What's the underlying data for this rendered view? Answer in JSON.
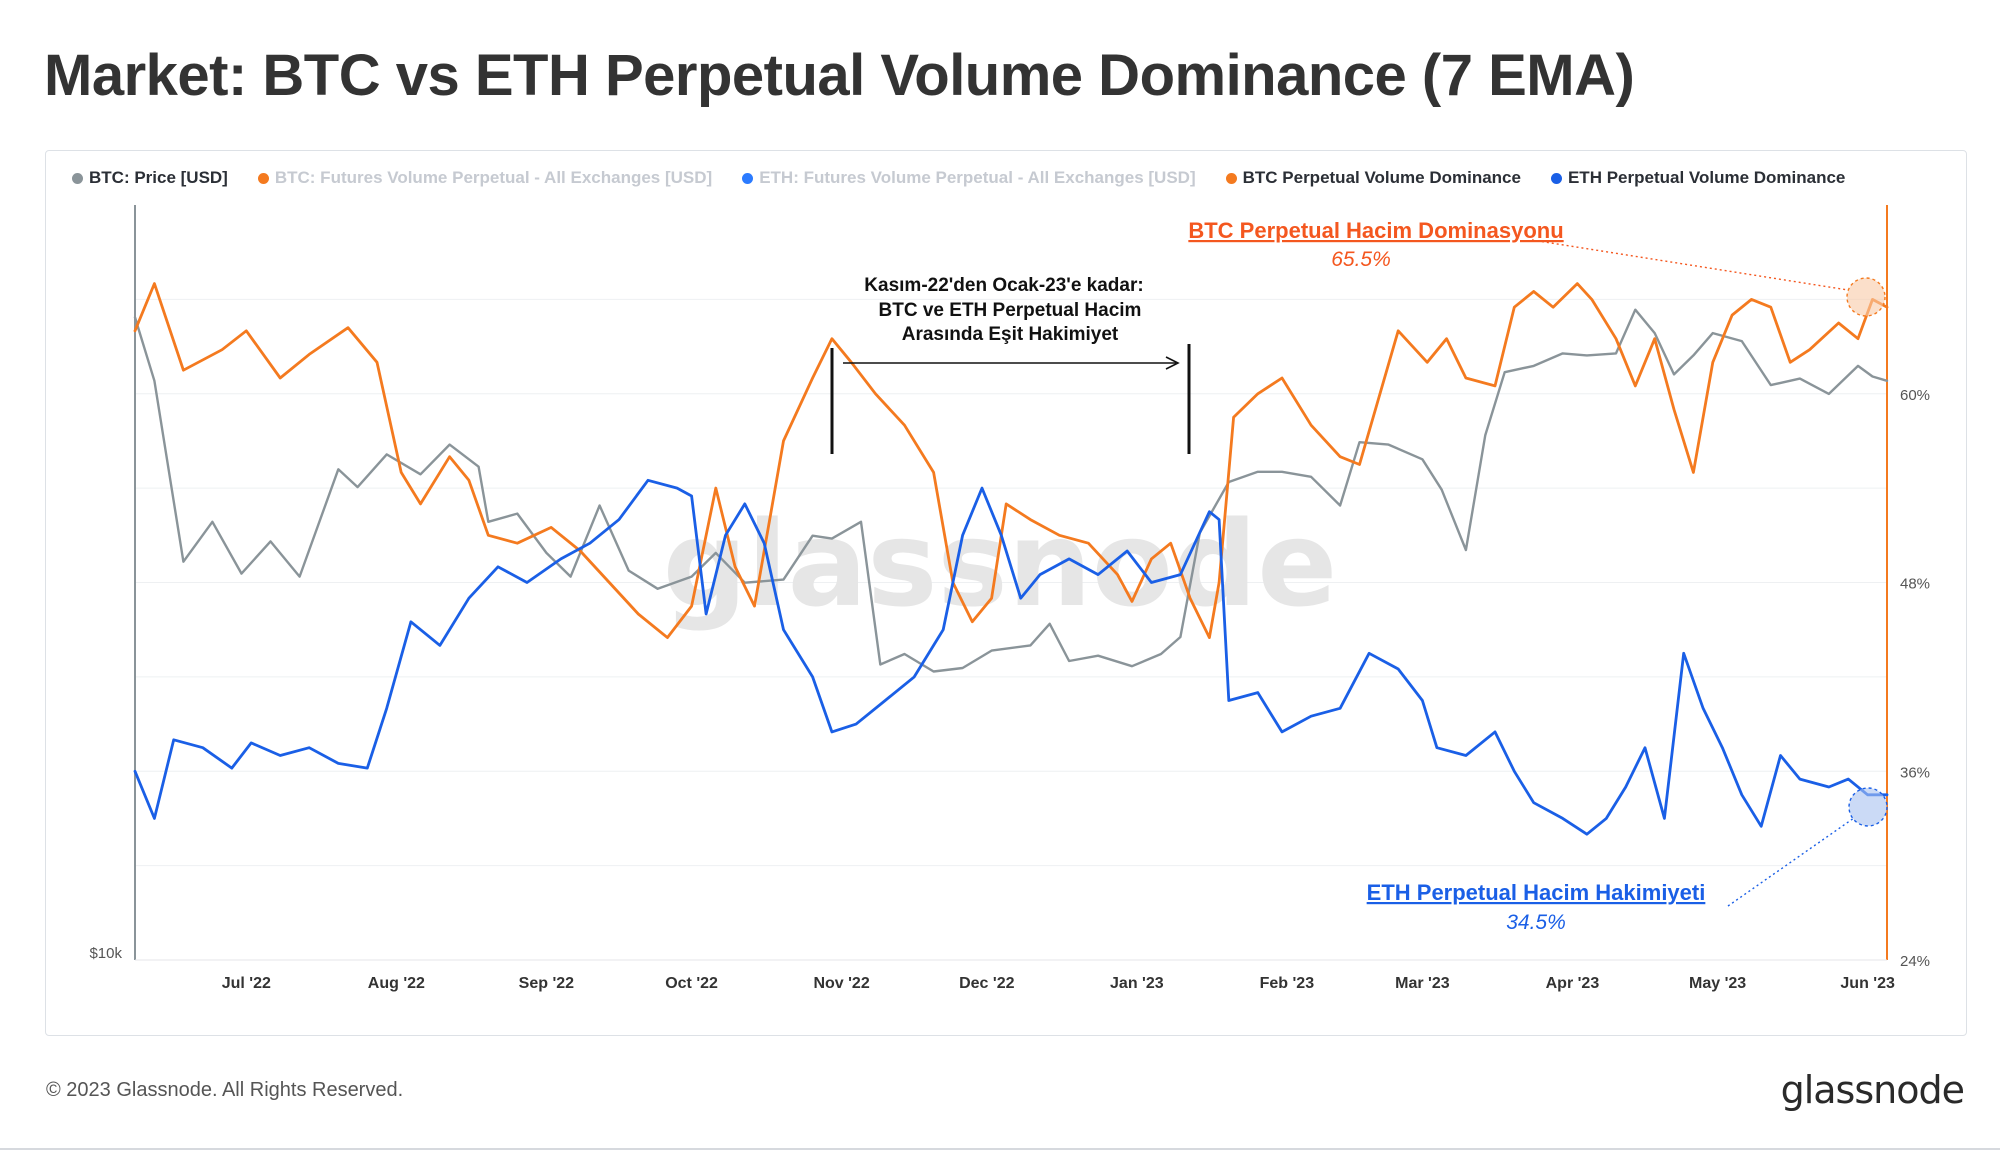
{
  "title": "Market: BTC vs ETH Perpetual Volume Dominance (7 EMA)",
  "legend": [
    {
      "label": "BTC: Price [USD]",
      "color": "#8a9499",
      "dim": false
    },
    {
      "label": "BTC: Futures Volume Perpetual - All Exchanges [USD]",
      "color": "#f47a1f",
      "dim": true
    },
    {
      "label": "ETH: Futures Volume Perpetual - All Exchanges [USD]",
      "color": "#2b7bff",
      "dim": true
    },
    {
      "label": "BTC Perpetual Volume Dominance",
      "color": "#f47a1f",
      "dim": false
    },
    {
      "label": "ETH Perpetual Volume Dominance",
      "color": "#1a5fe6",
      "dim": false
    }
  ],
  "watermark": "glassnode",
  "footer": {
    "copyright": "© 2023 Glassnode. All Rights Reserved.",
    "logo": "glassnode"
  },
  "chart_data": {
    "type": "line",
    "title": "Market: BTC vs ETH Perpetual Volume Dominance (7 EMA)",
    "x_tick_labels": [
      "Jul '22",
      "Aug '22",
      "Sep '22",
      "Oct '22",
      "Nov '22",
      "Dec '22",
      "Jan '23",
      "Feb '23",
      "Mar '23",
      "Apr '23",
      "May '23",
      "Jun '23"
    ],
    "y_right_ticks": [
      "60%",
      "48%",
      "36%",
      "24%"
    ],
    "y_right_values": [
      60,
      48,
      36,
      24
    ],
    "y_right_range": [
      24,
      72
    ],
    "y_left_tick": "$10k",
    "x_range": [
      "2022-06-08",
      "2023-06-05"
    ],
    "grid": true,
    "legend_position": "top",
    "series": [
      {
        "name": "BTC Perpetual Volume Dominance",
        "color": "#f47a1f",
        "axis": "right-percent",
        "points": [
          [
            "2022-06-08",
            64.0
          ],
          [
            "2022-06-12",
            67.0
          ],
          [
            "2022-06-18",
            61.5
          ],
          [
            "2022-06-26",
            62.8
          ],
          [
            "2022-07-01",
            64.0
          ],
          [
            "2022-07-08",
            61.0
          ],
          [
            "2022-07-14",
            62.5
          ],
          [
            "2022-07-22",
            64.2
          ],
          [
            "2022-07-28",
            62.0
          ],
          [
            "2022-08-02",
            55.0
          ],
          [
            "2022-08-06",
            53.0
          ],
          [
            "2022-08-12",
            56.0
          ],
          [
            "2022-08-16",
            54.5
          ],
          [
            "2022-08-20",
            51.0
          ],
          [
            "2022-08-26",
            50.5
          ],
          [
            "2022-09-02",
            51.5
          ],
          [
            "2022-09-08",
            50.0
          ],
          [
            "2022-09-14",
            48.0
          ],
          [
            "2022-09-20",
            46.0
          ],
          [
            "2022-09-26",
            44.5
          ],
          [
            "2022-10-01",
            46.5
          ],
          [
            "2022-10-06",
            54.0
          ],
          [
            "2022-10-10",
            49.0
          ],
          [
            "2022-10-14",
            46.5
          ],
          [
            "2022-10-20",
            57.0
          ],
          [
            "2022-10-26",
            61.0
          ],
          [
            "2022-10-30",
            63.5
          ],
          [
            "2022-11-03",
            62.0
          ],
          [
            "2022-11-08",
            60.0
          ],
          [
            "2022-11-14",
            58.0
          ],
          [
            "2022-11-20",
            55.0
          ],
          [
            "2022-11-24",
            48.0
          ],
          [
            "2022-11-28",
            45.5
          ],
          [
            "2022-12-02",
            47.0
          ],
          [
            "2022-12-05",
            53.0
          ],
          [
            "2022-12-10",
            52.0
          ],
          [
            "2022-12-16",
            51.0
          ],
          [
            "2022-12-22",
            50.5
          ],
          [
            "2022-12-28",
            48.5
          ],
          [
            "2022-12-31",
            46.8
          ],
          [
            "2023-01-04",
            49.5
          ],
          [
            "2023-01-08",
            50.5
          ],
          [
            "2023-01-12",
            47.0
          ],
          [
            "2023-01-16",
            44.5
          ],
          [
            "2023-01-18",
            48.0
          ],
          [
            "2023-01-21",
            58.5
          ],
          [
            "2023-01-26",
            60.0
          ],
          [
            "2023-01-31",
            61.0
          ],
          [
            "2023-02-06",
            58.0
          ],
          [
            "2023-02-12",
            56.0
          ],
          [
            "2023-02-16",
            55.5
          ],
          [
            "2023-02-24",
            64.0
          ],
          [
            "2023-03-02",
            62.0
          ],
          [
            "2023-03-06",
            63.5
          ],
          [
            "2023-03-10",
            61.0
          ],
          [
            "2023-03-16",
            60.5
          ],
          [
            "2023-03-20",
            65.5
          ],
          [
            "2023-03-24",
            66.5
          ],
          [
            "2023-03-28",
            65.5
          ],
          [
            "2023-04-02",
            67.0
          ],
          [
            "2023-04-05",
            66.0
          ],
          [
            "2023-04-10",
            63.5
          ],
          [
            "2023-04-14",
            60.5
          ],
          [
            "2023-04-18",
            63.5
          ],
          [
            "2023-04-22",
            59.0
          ],
          [
            "2023-04-26",
            55.0
          ],
          [
            "2023-04-30",
            62.0
          ],
          [
            "2023-05-04",
            65.0
          ],
          [
            "2023-05-08",
            66.0
          ],
          [
            "2023-05-12",
            65.5
          ],
          [
            "2023-05-16",
            62.0
          ],
          [
            "2023-05-20",
            62.8
          ],
          [
            "2023-05-26",
            64.5
          ],
          [
            "2023-05-30",
            63.5
          ],
          [
            "2023-06-02",
            66.0
          ],
          [
            "2023-06-05",
            65.5
          ]
        ]
      },
      {
        "name": "ETH Perpetual Volume Dominance",
        "color": "#1a5fe6",
        "axis": "right-percent",
        "points": [
          [
            "2022-06-08",
            36.0
          ],
          [
            "2022-06-12",
            33.0
          ],
          [
            "2022-06-16",
            38.0
          ],
          [
            "2022-06-22",
            37.5
          ],
          [
            "2022-06-28",
            36.2
          ],
          [
            "2022-07-02",
            37.8
          ],
          [
            "2022-07-08",
            37.0
          ],
          [
            "2022-07-14",
            37.5
          ],
          [
            "2022-07-20",
            36.5
          ],
          [
            "2022-07-26",
            36.2
          ],
          [
            "2022-07-30",
            40.0
          ],
          [
            "2022-08-04",
            45.5
          ],
          [
            "2022-08-10",
            44.0
          ],
          [
            "2022-08-16",
            47.0
          ],
          [
            "2022-08-22",
            49.0
          ],
          [
            "2022-08-28",
            48.0
          ],
          [
            "2022-09-04",
            49.5
          ],
          [
            "2022-09-10",
            50.5
          ],
          [
            "2022-09-16",
            52.0
          ],
          [
            "2022-09-22",
            54.5
          ],
          [
            "2022-09-28",
            54.0
          ],
          [
            "2022-10-01",
            53.5
          ],
          [
            "2022-10-04",
            46.0
          ],
          [
            "2022-10-08",
            51.0
          ],
          [
            "2022-10-12",
            53.0
          ],
          [
            "2022-10-16",
            50.5
          ],
          [
            "2022-10-20",
            45.0
          ],
          [
            "2022-10-26",
            42.0
          ],
          [
            "2022-10-30",
            38.5
          ],
          [
            "2022-11-04",
            39.0
          ],
          [
            "2022-11-10",
            40.5
          ],
          [
            "2022-11-16",
            42.0
          ],
          [
            "2022-11-22",
            45.0
          ],
          [
            "2022-11-26",
            51.0
          ],
          [
            "2022-11-30",
            54.0
          ],
          [
            "2022-12-04",
            51.0
          ],
          [
            "2022-12-08",
            47.0
          ],
          [
            "2022-12-12",
            48.5
          ],
          [
            "2022-12-18",
            49.5
          ],
          [
            "2022-12-24",
            48.5
          ],
          [
            "2022-12-30",
            50.0
          ],
          [
            "2023-01-04",
            48.0
          ],
          [
            "2023-01-10",
            48.5
          ],
          [
            "2023-01-16",
            52.5
          ],
          [
            "2023-01-18",
            52.0
          ],
          [
            "2023-01-20",
            40.5
          ],
          [
            "2023-01-26",
            41.0
          ],
          [
            "2023-01-31",
            38.5
          ],
          [
            "2023-02-06",
            39.5
          ],
          [
            "2023-02-12",
            40.0
          ],
          [
            "2023-02-18",
            43.5
          ],
          [
            "2023-02-24",
            42.5
          ],
          [
            "2023-03-01",
            40.5
          ],
          [
            "2023-03-04",
            37.5
          ],
          [
            "2023-03-10",
            37.0
          ],
          [
            "2023-03-16",
            38.5
          ],
          [
            "2023-03-20",
            36.0
          ],
          [
            "2023-03-24",
            34.0
          ],
          [
            "2023-03-30",
            33.0
          ],
          [
            "2023-04-04",
            32.0
          ],
          [
            "2023-04-08",
            33.0
          ],
          [
            "2023-04-12",
            35.0
          ],
          [
            "2023-04-16",
            37.5
          ],
          [
            "2023-04-20",
            33.0
          ],
          [
            "2023-04-24",
            43.5
          ],
          [
            "2023-04-28",
            40.0
          ],
          [
            "2023-05-02",
            37.5
          ],
          [
            "2023-05-06",
            34.5
          ],
          [
            "2023-05-10",
            32.5
          ],
          [
            "2023-05-14",
            37.0
          ],
          [
            "2023-05-18",
            35.5
          ],
          [
            "2023-05-24",
            35.0
          ],
          [
            "2023-05-28",
            35.5
          ],
          [
            "2023-06-01",
            34.5
          ],
          [
            "2023-06-05",
            34.5
          ]
        ]
      },
      {
        "name": "BTC: Price [USD]",
        "color": "#8a9499",
        "axis": "left-log",
        "points": [
          [
            "2022-06-08",
            30100
          ],
          [
            "2022-06-12",
            27000
          ],
          [
            "2022-06-18",
            19800
          ],
          [
            "2022-06-24",
            21200
          ],
          [
            "2022-06-30",
            19400
          ],
          [
            "2022-07-06",
            20500
          ],
          [
            "2022-07-12",
            19300
          ],
          [
            "2022-07-20",
            23200
          ],
          [
            "2022-07-24",
            22500
          ],
          [
            "2022-07-30",
            23800
          ],
          [
            "2022-08-06",
            23000
          ],
          [
            "2022-08-12",
            24200
          ],
          [
            "2022-08-18",
            23300
          ],
          [
            "2022-08-20",
            21200
          ],
          [
            "2022-08-26",
            21500
          ],
          [
            "2022-09-01",
            20100
          ],
          [
            "2022-09-06",
            19300
          ],
          [
            "2022-09-12",
            21800
          ],
          [
            "2022-09-18",
            19500
          ],
          [
            "2022-09-24",
            18900
          ],
          [
            "2022-10-01",
            19300
          ],
          [
            "2022-10-06",
            20100
          ],
          [
            "2022-10-12",
            19100
          ],
          [
            "2022-10-20",
            19200
          ],
          [
            "2022-10-26",
            20700
          ],
          [
            "2022-10-30",
            20600
          ],
          [
            "2022-11-05",
            21200
          ],
          [
            "2022-11-09",
            16600
          ],
          [
            "2022-11-14",
            16900
          ],
          [
            "2022-11-20",
            16400
          ],
          [
            "2022-11-26",
            16500
          ],
          [
            "2022-12-02",
            17000
          ],
          [
            "2022-12-10",
            17150
          ],
          [
            "2022-12-14",
            17800
          ],
          [
            "2022-12-18",
            16700
          ],
          [
            "2022-12-24",
            16850
          ],
          [
            "2022-12-31",
            16550
          ],
          [
            "2023-01-06",
            16900
          ],
          [
            "2023-01-10",
            17400
          ],
          [
            "2023-01-14",
            20800
          ],
          [
            "2023-01-20",
            22700
          ],
          [
            "2023-01-26",
            23100
          ],
          [
            "2023-01-31",
            23100
          ],
          [
            "2023-02-06",
            22900
          ],
          [
            "2023-02-12",
            21800
          ],
          [
            "2023-02-16",
            24300
          ],
          [
            "2023-02-22",
            24200
          ],
          [
            "2023-03-01",
            23600
          ],
          [
            "2023-03-05",
            22400
          ],
          [
            "2023-03-10",
            20200
          ],
          [
            "2023-03-14",
            24600
          ],
          [
            "2023-03-18",
            27400
          ],
          [
            "2023-03-24",
            27700
          ],
          [
            "2023-03-30",
            28300
          ],
          [
            "2023-04-04",
            28200
          ],
          [
            "2023-04-10",
            28300
          ],
          [
            "2023-04-14",
            30500
          ],
          [
            "2023-04-18",
            29300
          ],
          [
            "2023-04-22",
            27300
          ],
          [
            "2023-04-26",
            28200
          ],
          [
            "2023-04-30",
            29300
          ],
          [
            "2023-05-06",
            28900
          ],
          [
            "2023-05-12",
            26800
          ],
          [
            "2023-05-18",
            27100
          ],
          [
            "2023-05-24",
            26400
          ],
          [
            "2023-05-30",
            27700
          ],
          [
            "2023-06-02",
            27200
          ],
          [
            "2023-06-05",
            27000
          ]
        ]
      }
    ]
  },
  "annotations": {
    "bracket_text": [
      "Kasım-22'den Ocak-23'e kadar:",
      "BTC ve ETH Perpetual Hacim",
      "Arasında Eşit Hakimiyet"
    ],
    "btc_label": "BTC Perpetual Hacim Dominasyonu",
    "btc_value": "65.5%",
    "eth_label": "ETH Perpetual Hacim Hakimiyeti",
    "eth_value": "34.5%"
  }
}
